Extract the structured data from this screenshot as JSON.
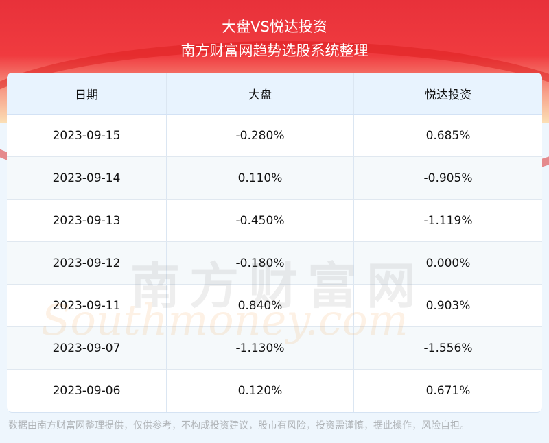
{
  "header": {
    "title": "大盘VS悦达投资",
    "subtitle": "南方财富网趋势选股系统整理"
  },
  "table": {
    "columns": [
      "日期",
      "大盘",
      "悦达投资"
    ],
    "rows": [
      [
        "2023-09-15",
        "-0.280%",
        "0.685%"
      ],
      [
        "2023-09-14",
        "0.110%",
        "-0.905%"
      ],
      [
        "2023-09-13",
        "-0.450%",
        "-1.119%"
      ],
      [
        "2023-09-12",
        "-0.180%",
        "0.000%"
      ],
      [
        "2023-09-11",
        "0.840%",
        "0.903%"
      ],
      [
        "2023-09-07",
        "-1.130%",
        "-1.556%"
      ],
      [
        "2023-09-06",
        "0.120%",
        "0.671%"
      ]
    ]
  },
  "watermark": {
    "cn": "南方财富网",
    "en": "Southmoney.com"
  },
  "footer": {
    "disclaimer": "数据由南方财富网整理提供，仅供参考，不构成投资建议，股市有风险，投资需谨慎，据此操作，风险自担。"
  },
  "colors": {
    "banner": "#e8313a",
    "header_bg": "#e8f3fe",
    "page_bg": "#eef6fd"
  }
}
